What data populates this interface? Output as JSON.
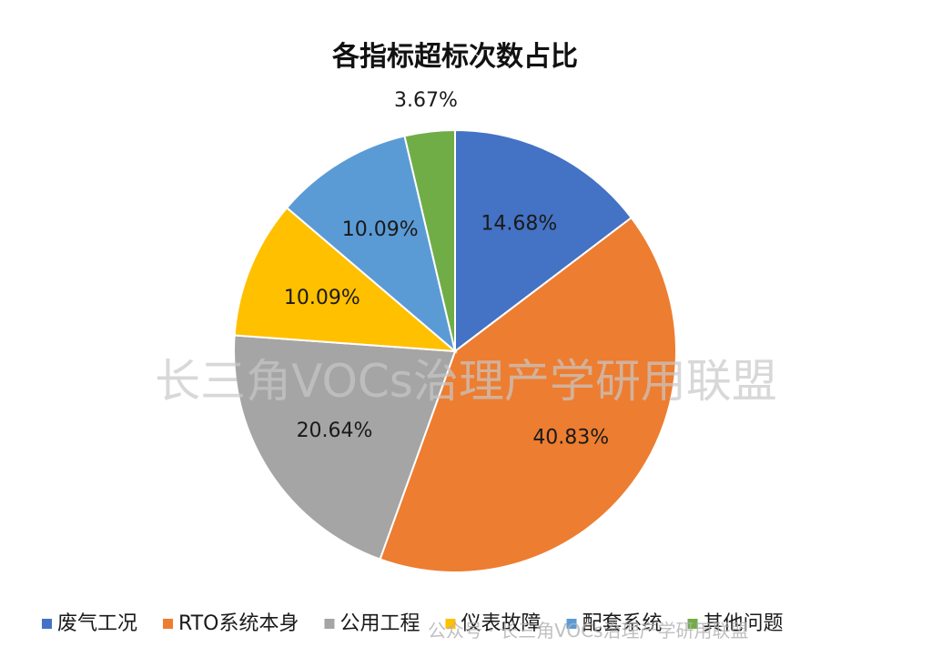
{
  "chart_data": {
    "type": "pie",
    "title": "各指标超标次数占比",
    "categories": [
      "废气工况",
      "RTO系统本身",
      "公用工程",
      "仪表故障",
      "配套系统",
      "其他问题"
    ],
    "values": [
      14.68,
      40.83,
      20.64,
      10.09,
      10.09,
      3.67
    ],
    "labels": [
      "14.68%",
      "40.83%",
      "20.64%",
      "10.09%",
      "10.09%",
      "3.67%"
    ],
    "colors": [
      "#4472c4",
      "#ed7d31",
      "#a5a5a5",
      "#ffc000",
      "#5b9bd5",
      "#70ad47"
    ],
    "legend_position": "bottom"
  },
  "watermark": "长三角VOCs治理产学研用联盟",
  "badge_watermark": "公众号 · 长三角VOCs治理产学研用联盟"
}
